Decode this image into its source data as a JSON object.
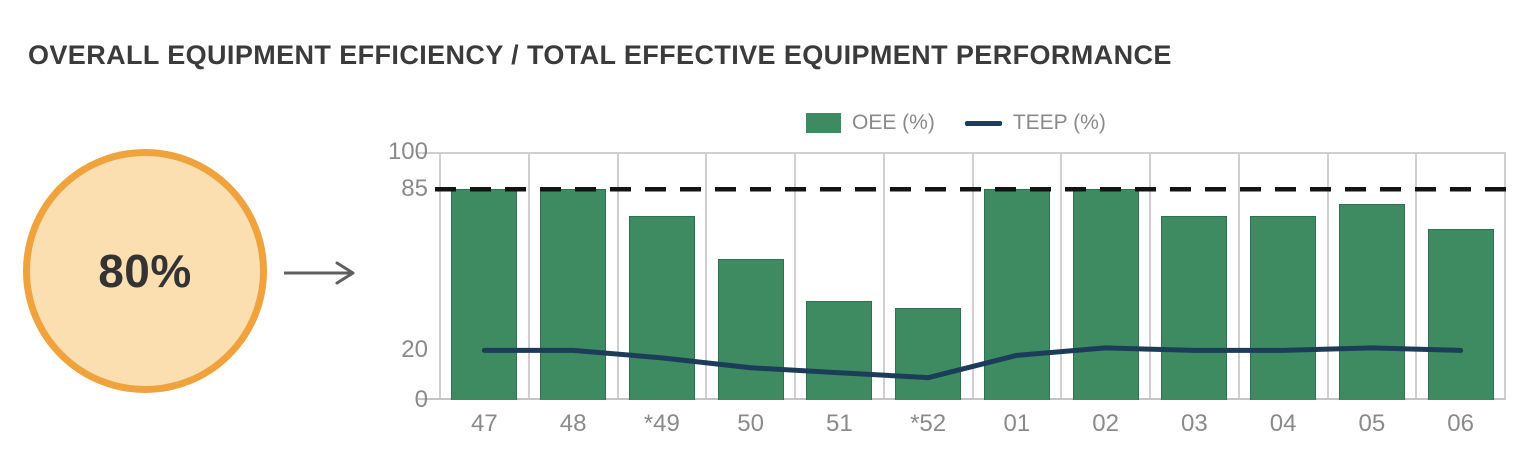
{
  "title": "OVERALL EQUIPMENT EFFICIENCY / TOTAL EFFECTIVE EQUIPMENT PERFORMANCE",
  "gauge": {
    "value_label": "80%"
  },
  "legend": [
    {
      "label": "OEE (%)",
      "marker": "bar-swatch"
    },
    {
      "label": "TEEP (%)",
      "marker": "line-swatch"
    }
  ],
  "colors": {
    "bar": "#3e8b62",
    "bar_border": "#2e7050",
    "line": "#1c3c59",
    "target_line": "#141414",
    "gauge_fill": "#fbdfb0",
    "gauge_border": "#f0a33c",
    "gauge_text": "#333333",
    "axis_text": "#8a8a8a",
    "grid": "#cfcfcf",
    "title_text": "#3b3b3b",
    "arrow": "#5f5f5f"
  },
  "chart_data": {
    "type": "bar",
    "categories": [
      "47",
      "48",
      "*49",
      "50",
      "51",
      "*52",
      "01",
      "02",
      "03",
      "04",
      "05",
      "06"
    ],
    "series": [
      {
        "name": "OEE (%)",
        "type": "bar",
        "values": [
          85,
          85,
          74,
          57,
          40,
          37,
          85,
          85,
          74,
          74,
          79,
          69
        ]
      },
      {
        "name": "TEEP (%)",
        "type": "line",
        "values": [
          20,
          20,
          17,
          13,
          11,
          9,
          18,
          21,
          20,
          20,
          21,
          20
        ]
      }
    ],
    "target_line": 85,
    "y_ticks": [
      0,
      20,
      85,
      100
    ],
    "ylim": [
      0,
      100
    ],
    "title": "",
    "xlabel": "",
    "ylabel": "",
    "grid": "vertical-columns, top and baseline horizontal",
    "legend_position": "top-center"
  }
}
